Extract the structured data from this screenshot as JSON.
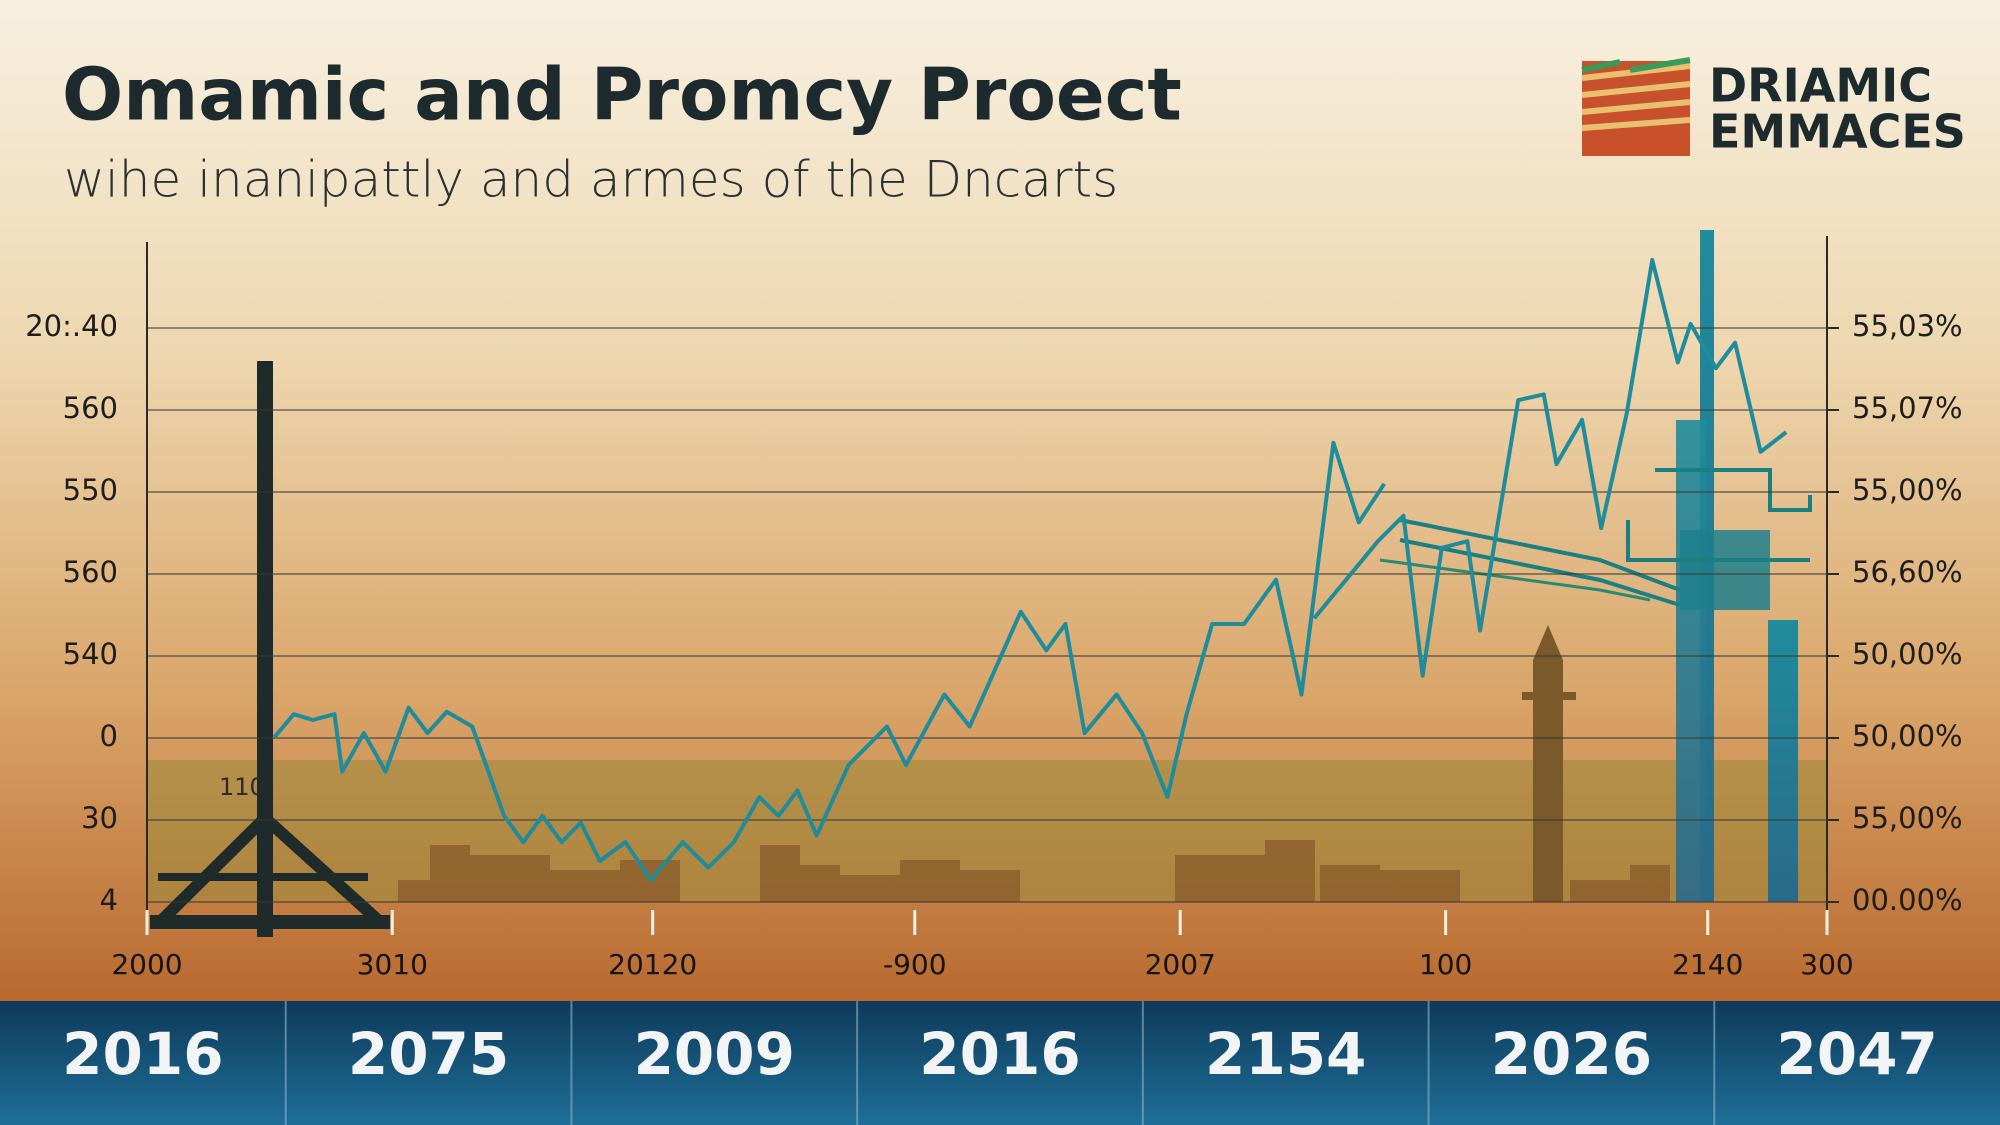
{
  "chart_data": {
    "type": "line",
    "title": "Omamic and Promcy Proect",
    "subtitle": "wihe inanipattly and armes of the Dncarts",
    "annotation": "110",
    "color": "#1f8c9c",
    "grid": true,
    "xlim": [
      0,
      100
    ],
    "xticks": [
      {
        "value": 0,
        "label": "2000"
      },
      {
        "value": 14.6,
        "label": "3010"
      },
      {
        "value": 30.1,
        "label": "20120"
      },
      {
        "value": 45.7,
        "label": "-900"
      },
      {
        "value": 61.5,
        "label": "2007"
      },
      {
        "value": 77.3,
        "label": "100"
      },
      {
        "value": 92.9,
        "label": "2140"
      },
      {
        "value": 100,
        "label": "300"
      }
    ],
    "ylim": [
      0,
      8
    ],
    "yticks": [
      {
        "value": 0,
        "label": "4"
      },
      {
        "value": 1,
        "label": "30"
      },
      {
        "value": 2,
        "label": "0"
      },
      {
        "value": 3,
        "label": "540"
      },
      {
        "value": 4,
        "label": "560"
      },
      {
        "value": 5,
        "label": "550"
      },
      {
        "value": 6,
        "label": "560"
      },
      {
        "value": 7,
        "label": "20:.40"
      }
    ],
    "y2lim": [
      0,
      8
    ],
    "y2ticks": [
      {
        "value": 0,
        "label": "00.00%"
      },
      {
        "value": 1,
        "label": "55,00%"
      },
      {
        "value": 2,
        "label": "50,00%"
      },
      {
        "value": 3,
        "label": "50,00%"
      },
      {
        "value": 4,
        "label": "56,60%"
      },
      {
        "value": 5,
        "label": "55,00%"
      },
      {
        "value": 6,
        "label": "55,07%"
      },
      {
        "value": 7,
        "label": "55,03%"
      }
    ],
    "x": [
      7.59,
      8.73,
      9.87,
      11.16,
      11.62,
      12.91,
      14.2,
      15.57,
      16.7,
      17.84,
      19.36,
      21.26,
      22.4,
      23.54,
      24.68,
      25.82,
      26.96,
      28.47,
      29.99,
      31.89,
      33.41,
      34.93,
      36.45,
      37.59,
      38.72,
      39.86,
      41.76,
      44.04,
      45.18,
      47.46,
      48.97,
      52.01,
      53.53,
      54.67,
      55.81,
      57.71,
      59.23,
      60.74,
      61.88,
      63.4,
      65.3,
      67.2,
      68.72,
      70.62,
      72.13,
      73.65,
      null,
      69.48,
      73.27,
      74.79,
      75.93,
      77.07,
      78.59,
      79.35,
      81.62,
      83.14,
      83.9,
      85.42,
      86.56,
      88.08,
      89.6,
      91.12,
      91.88,
      93.39,
      94.53,
      96.05,
      97.57
    ],
    "values": [
      2.01,
      2.29,
      2.22,
      2.29,
      1.59,
      2.06,
      1.59,
      2.37,
      2.06,
      2.32,
      2.14,
      1.05,
      0.73,
      1.05,
      0.73,
      0.97,
      0.5,
      0.73,
      0.27,
      0.73,
      0.42,
      0.73,
      1.28,
      1.05,
      1.36,
      0.81,
      1.67,
      2.14,
      1.67,
      2.53,
      2.14,
      3.54,
      3.07,
      3.39,
      2.06,
      2.53,
      2.06,
      1.28,
      2.29,
      3.39,
      3.39,
      3.93,
      2.53,
      5.6,
      4.63,
      5.1,
      null,
      3.46,
      4.4,
      4.71,
      2.76,
      4.32,
      4.4,
      3.31,
      6.12,
      6.19,
      5.34,
      5.88,
      4.56,
      5.96,
      7.83,
      6.58,
      7.05,
      6.51,
      6.82,
      5.49,
      5.73
    ]
  },
  "logo": {
    "line1": "DRIAMIC",
    "line2": "EMMACES"
  },
  "footer_years": [
    "2016",
    "2075",
    "2009",
    "2016",
    "2154",
    "2026",
    "2047"
  ]
}
